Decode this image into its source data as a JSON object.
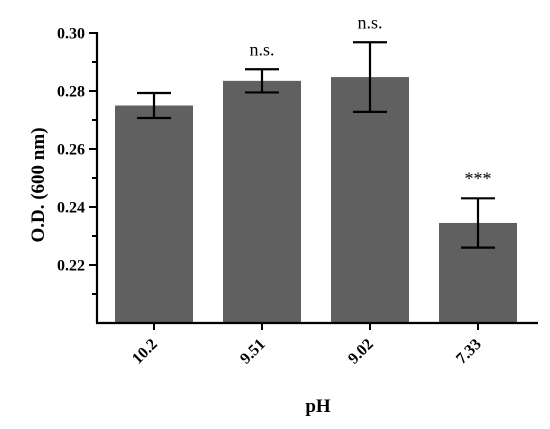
{
  "chart_data": {
    "type": "bar",
    "categories": [
      "10.2",
      "9.51",
      "9.02",
      "7.33"
    ],
    "values": [
      0.275,
      0.2835,
      0.2848,
      0.2345
    ],
    "errors": [
      0.0043,
      0.004,
      0.012,
      0.0085
    ],
    "annotations": [
      "",
      "n.s.",
      "n.s.",
      "***"
    ],
    "ylim": [
      0.2,
      0.3
    ],
    "yticks": [
      0.22,
      0.24,
      0.26,
      0.28,
      0.3
    ],
    "ytick_labels": [
      "0.22",
      "0.24",
      "0.26",
      "0.28",
      "0.30"
    ],
    "xlabel": "pH",
    "ylabel": "O.D. (600 nm)",
    "bar_color": "#606060",
    "grid": false
  }
}
